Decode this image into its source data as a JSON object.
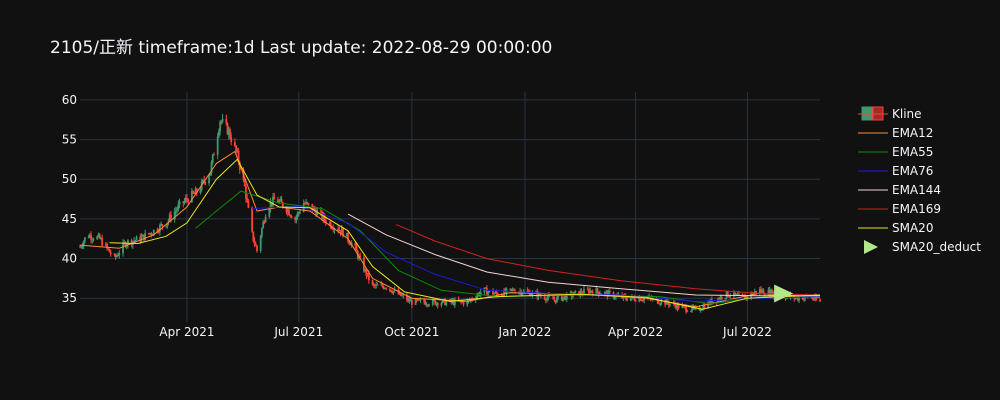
{
  "title": "2105/正新 timeframe:1d Last update: 2022-08-29 00:00:00",
  "chart_data": {
    "type": "candlestick",
    "title": "2105/正新 timeframe:1d Last update: 2022-08-29 00:00:00",
    "ylim": [
      32,
      61
    ],
    "y_ticks": [
      35,
      40,
      45,
      50,
      55,
      60
    ],
    "x_ticks": [
      {
        "label": "Apr 2021",
        "date": "2021-04-01"
      },
      {
        "label": "Jul 2021",
        "date": "2021-07-01"
      },
      {
        "label": "Oct 2021",
        "date": "2021-10-01"
      },
      {
        "label": "Jan 2022",
        "date": "2022-01-01"
      },
      {
        "label": "Apr 2022",
        "date": "2022-04-01"
      },
      {
        "label": "Jul 2022",
        "date": "2022-07-01"
      }
    ],
    "xlim": [
      "2021-01-04",
      "2022-08-29"
    ],
    "grid": true,
    "legend_position": "right",
    "colors": {
      "up": "#3d9970",
      "down": "#ff4136"
    },
    "price_path": [
      [
        "2021-01-04",
        41.5
      ],
      [
        "2021-01-10",
        43.0
      ],
      [
        "2021-01-20",
        42.5
      ],
      [
        "2021-02-01",
        40.0
      ],
      [
        "2021-02-10",
        42.0
      ],
      [
        "2021-02-22",
        42.5
      ],
      [
        "2021-03-05",
        43.5
      ],
      [
        "2021-03-15",
        44.5
      ],
      [
        "2021-03-25",
        46.5
      ],
      [
        "2021-04-01",
        47.5
      ],
      [
        "2021-04-10",
        48.5
      ],
      [
        "2021-04-20",
        51.0
      ],
      [
        "2021-04-28",
        57.5
      ],
      [
        "2021-05-05",
        56.0
      ],
      [
        "2021-05-12",
        53.0
      ],
      [
        "2021-05-18",
        49.0
      ],
      [
        "2021-05-24",
        43.0
      ],
      [
        "2021-05-28",
        41.0
      ],
      [
        "2021-06-05",
        46.5
      ],
      [
        "2021-06-12",
        47.5
      ],
      [
        "2021-06-20",
        46.5
      ],
      [
        "2021-06-28",
        45.0
      ],
      [
        "2021-07-05",
        47.0
      ],
      [
        "2021-07-15",
        46.0
      ],
      [
        "2021-07-25",
        44.5
      ],
      [
        "2021-08-05",
        43.5
      ],
      [
        "2021-08-15",
        41.5
      ],
      [
        "2021-08-22",
        39.0
      ],
      [
        "2021-08-30",
        36.5
      ],
      [
        "2021-09-10",
        36.5
      ],
      [
        "2021-09-20",
        35.5
      ],
      [
        "2021-10-01",
        34.5
      ],
      [
        "2021-10-15",
        34.5
      ],
      [
        "2021-11-01",
        34.5
      ],
      [
        "2021-11-15",
        34.5
      ],
      [
        "2021-11-28",
        36.0
      ],
      [
        "2021-12-10",
        35.5
      ],
      [
        "2021-12-25",
        36.0
      ],
      [
        "2022-01-10",
        35.5
      ],
      [
        "2022-01-25",
        34.8
      ],
      [
        "2022-02-10",
        35.5
      ],
      [
        "2022-02-25",
        36.0
      ],
      [
        "2022-03-10",
        35.5
      ],
      [
        "2022-03-25",
        35.0
      ],
      [
        "2022-04-10",
        35.0
      ],
      [
        "2022-04-25",
        34.5
      ],
      [
        "2022-05-10",
        33.8
      ],
      [
        "2022-05-20",
        33.5
      ],
      [
        "2022-06-01",
        34.5
      ],
      [
        "2022-06-15",
        35.5
      ],
      [
        "2022-06-28",
        35.0
      ],
      [
        "2022-07-10",
        36.0
      ],
      [
        "2022-07-25",
        35.5
      ],
      [
        "2022-08-10",
        35.0
      ],
      [
        "2022-08-20",
        35.2
      ],
      [
        "2022-08-29",
        34.5
      ]
    ],
    "ema_series": [
      {
        "name": "EMA12",
        "color": "#ff8c3a",
        "path": [
          [
            "2021-01-04",
            41.7
          ],
          [
            "2021-02-05",
            41.3
          ],
          [
            "2021-03-05",
            43.0
          ],
          [
            "2021-04-01",
            46.5
          ],
          [
            "2021-04-25",
            52.0
          ],
          [
            "2021-05-10",
            53.5
          ],
          [
            "2021-05-28",
            46.0
          ],
          [
            "2021-06-15",
            46.5
          ],
          [
            "2021-07-10",
            46.0
          ],
          [
            "2021-08-10",
            42.5
          ],
          [
            "2021-08-30",
            37.5
          ],
          [
            "2021-10-01",
            35.0
          ],
          [
            "2021-11-15",
            34.6
          ],
          [
            "2021-12-20",
            35.7
          ],
          [
            "2022-02-15",
            35.5
          ],
          [
            "2022-04-10",
            35.0
          ],
          [
            "2022-05-20",
            33.9
          ],
          [
            "2022-07-10",
            35.6
          ],
          [
            "2022-08-29",
            35.1
          ]
        ]
      },
      {
        "name": "EMA55",
        "color": "#0c8a0c",
        "path": [
          [
            "2021-04-08",
            43.8
          ],
          [
            "2021-04-25",
            46.0
          ],
          [
            "2021-05-15",
            48.5
          ],
          [
            "2021-06-15",
            47.0
          ],
          [
            "2021-07-20",
            46.3
          ],
          [
            "2021-08-20",
            43.5
          ],
          [
            "2021-09-20",
            38.5
          ],
          [
            "2021-10-25",
            36.0
          ],
          [
            "2021-12-10",
            35.2
          ],
          [
            "2022-02-15",
            35.4
          ],
          [
            "2022-04-20",
            35.2
          ],
          [
            "2022-06-01",
            34.3
          ],
          [
            "2022-07-20",
            35.3
          ],
          [
            "2022-08-29",
            35.2
          ]
        ]
      },
      {
        "name": "EMA76",
        "color": "#1a1add",
        "path": [
          [
            "2021-05-24",
            46.3
          ],
          [
            "2021-07-01",
            46.6
          ],
          [
            "2021-08-10",
            44.5
          ],
          [
            "2021-09-10",
            40.8
          ],
          [
            "2021-10-20",
            38.0
          ],
          [
            "2021-12-01",
            36.0
          ],
          [
            "2022-01-20",
            35.6
          ],
          [
            "2022-03-20",
            35.4
          ],
          [
            "2022-05-20",
            34.6
          ],
          [
            "2022-07-10",
            35.0
          ],
          [
            "2022-08-29",
            35.2
          ]
        ]
      },
      {
        "name": "EMA144",
        "color": "#f3d3d3",
        "path": [
          [
            "2021-08-10",
            45.6
          ],
          [
            "2021-09-10",
            43.0
          ],
          [
            "2021-10-20",
            40.5
          ],
          [
            "2021-12-01",
            38.3
          ],
          [
            "2022-01-20",
            37.0
          ],
          [
            "2022-03-20",
            36.2
          ],
          [
            "2022-05-20",
            35.4
          ],
          [
            "2022-07-10",
            35.3
          ],
          [
            "2022-08-29",
            35.3
          ]
        ]
      },
      {
        "name": "EMA169",
        "color": "#d42020",
        "path": [
          [
            "2021-09-18",
            44.3
          ],
          [
            "2021-10-20",
            42.2
          ],
          [
            "2021-12-01",
            40.0
          ],
          [
            "2022-01-20",
            38.5
          ],
          [
            "2022-03-20",
            37.2
          ],
          [
            "2022-05-20",
            36.2
          ],
          [
            "2022-07-10",
            35.6
          ],
          [
            "2022-08-29",
            35.4
          ]
        ]
      },
      {
        "name": "SMA20",
        "color": "#e8e81a",
        "path": [
          [
            "2021-01-28",
            42.0
          ],
          [
            "2021-02-20",
            41.9
          ],
          [
            "2021-03-15",
            42.8
          ],
          [
            "2021-04-01",
            44.5
          ],
          [
            "2021-04-25",
            50.0
          ],
          [
            "2021-05-12",
            52.5
          ],
          [
            "2021-05-28",
            48.0
          ],
          [
            "2021-06-15",
            46.5
          ],
          [
            "2021-07-10",
            46.4
          ],
          [
            "2021-08-10",
            43.5
          ],
          [
            "2021-08-30",
            39.0
          ],
          [
            "2021-09-25",
            35.8
          ],
          [
            "2021-11-01",
            34.6
          ],
          [
            "2021-12-10",
            35.2
          ],
          [
            "2022-02-15",
            35.5
          ],
          [
            "2022-04-10",
            35.1
          ],
          [
            "2022-05-25",
            33.6
          ],
          [
            "2022-07-01",
            35.0
          ],
          [
            "2022-08-29",
            35.4
          ]
        ]
      }
    ],
    "sma20_deduct": {
      "name": "SMA20_deduct",
      "color": "#b4e68c",
      "date": "2022-07-30",
      "value": 35.6
    },
    "legend": [
      "Kline",
      "EMA12",
      "EMA55",
      "EMA76",
      "EMA144",
      "EMA169",
      "SMA20",
      "SMA20_deduct"
    ]
  }
}
